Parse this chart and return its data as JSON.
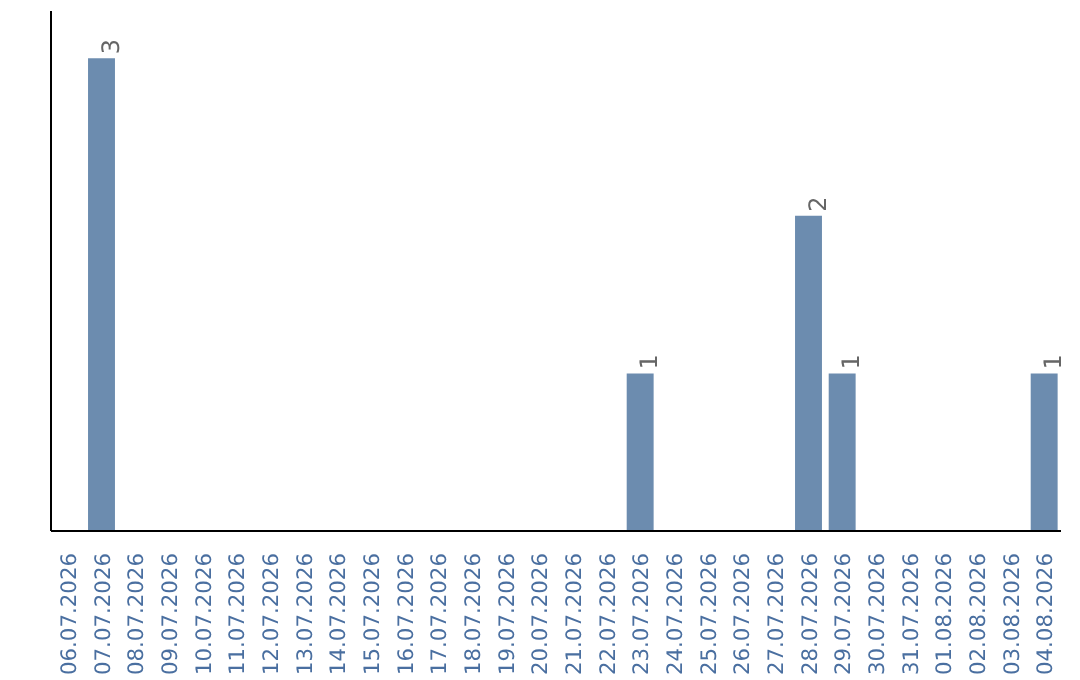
{
  "chart_data": {
    "type": "bar",
    "categories": [
      "06.07.2026",
      "07.07.2026",
      "08.07.2026",
      "09.07.2026",
      "10.07.2026",
      "11.07.2026",
      "12.07.2026",
      "13.07.2026",
      "14.07.2026",
      "15.07.2026",
      "16.07.2026",
      "17.07.2026",
      "18.07.2026",
      "19.07.2026",
      "20.07.2026",
      "21.07.2026",
      "22.07.2026",
      "23.07.2026",
      "24.07.2026",
      "25.07.2026",
      "26.07.2026",
      "27.07.2026",
      "28.07.2026",
      "29.07.2026",
      "30.07.2026",
      "31.07.2026",
      "01.08.2026",
      "02.08.2026",
      "03.08.2026",
      "04.08.2026"
    ],
    "values": [
      0,
      3,
      0,
      0,
      0,
      0,
      0,
      0,
      0,
      0,
      0,
      0,
      0,
      0,
      0,
      0,
      0,
      1,
      0,
      0,
      0,
      0,
      2,
      1,
      0,
      0,
      0,
      0,
      0,
      1
    ],
    "value_labels": [
      null,
      "3",
      null,
      null,
      null,
      null,
      null,
      null,
      null,
      null,
      null,
      null,
      null,
      null,
      null,
      null,
      null,
      "1",
      null,
      null,
      null,
      null,
      "2",
      "1",
      null,
      null,
      null,
      null,
      null,
      "1"
    ],
    "color": "#6c8caf",
    "grid": false,
    "tick_labels": "x"
  }
}
